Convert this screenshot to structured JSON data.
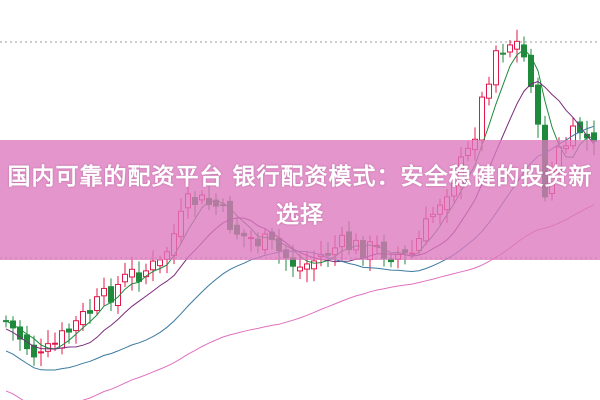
{
  "headline": "国内可靠的配资平台 银行配资模式：安全稳健的投资新选择",
  "colors": {
    "up": "#e0184a",
    "down": "#1f8a3c",
    "overlay": "#dc78be",
    "grid": "#999999",
    "ma_lines": [
      "#1f8a3c",
      "#7a2a7a",
      "#3a7aa0",
      "#e070c0"
    ]
  }
}
